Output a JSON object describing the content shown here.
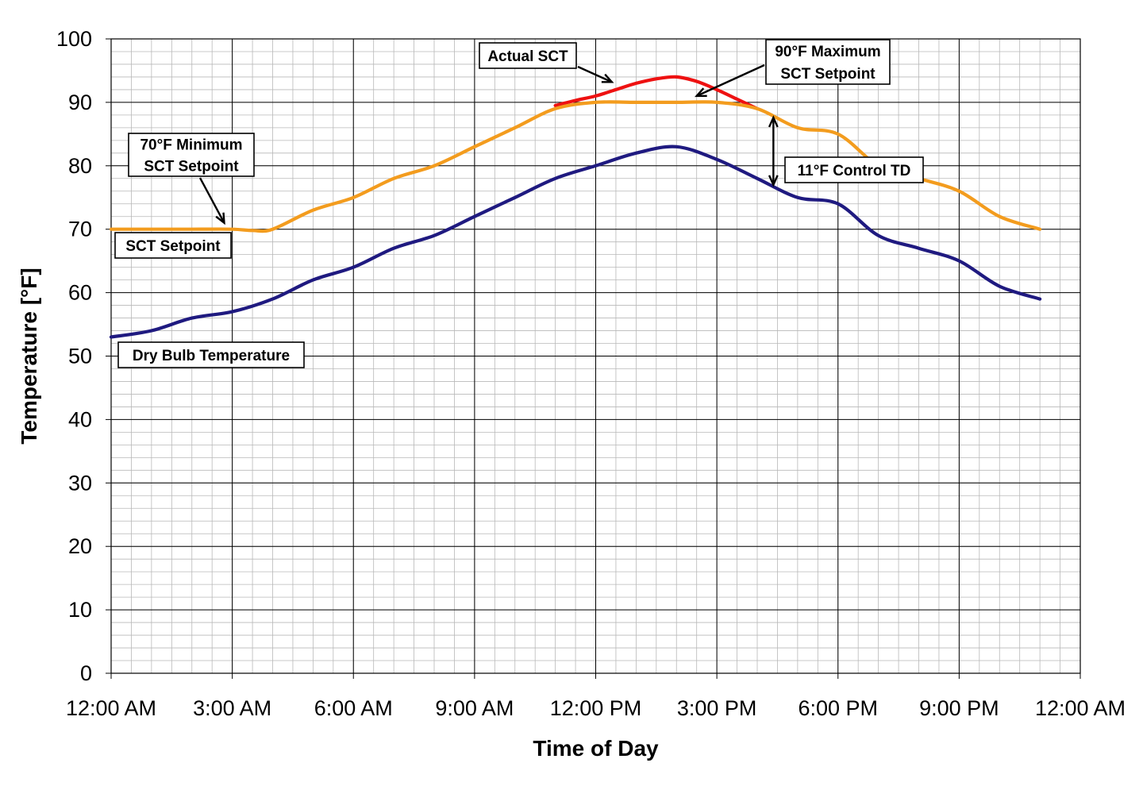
{
  "chart_data": {
    "type": "line",
    "xlabel": "Time of Day",
    "ylabel": "Temperature [°F]",
    "ylim": [
      0,
      100
    ],
    "yticks": [
      0,
      10,
      20,
      30,
      40,
      50,
      60,
      70,
      80,
      90,
      100
    ],
    "xlim": [
      0,
      24
    ],
    "xticks": [
      {
        "hour": 0,
        "label": "12:00 AM"
      },
      {
        "hour": 3,
        "label": "3:00 AM"
      },
      {
        "hour": 6,
        "label": "6:00 AM"
      },
      {
        "hour": 9,
        "label": "9:00 AM"
      },
      {
        "hour": 12,
        "label": "12:00 PM"
      },
      {
        "hour": 15,
        "label": "3:00 PM"
      },
      {
        "hour": 18,
        "label": "6:00 PM"
      },
      {
        "hour": 21,
        "label": "9:00 PM"
      },
      {
        "hour": 24,
        "label": "12:00 AM"
      }
    ],
    "grid": true,
    "series": [
      {
        "name": "Actual SCT",
        "color": "#ee1111",
        "x": [
          11,
          11.5,
          12,
          12.5,
          13,
          13.5,
          14,
          14.5,
          15,
          15.5,
          16
        ],
        "y": [
          89.5,
          90.3,
          91,
          92,
          93,
          93.7,
          94,
          93.3,
          92,
          90.5,
          89
        ]
      },
      {
        "name": "SCT Setpoint",
        "color": "#f39c1e",
        "x": [
          0,
          1,
          2,
          3,
          3.5,
          4,
          5,
          6,
          7,
          8,
          9,
          10,
          11,
          12,
          13,
          14,
          15,
          16,
          17,
          18,
          19,
          20,
          21,
          22,
          23
        ],
        "y": [
          70,
          70,
          70,
          70,
          69.8,
          70,
          73,
          75,
          78,
          80,
          83,
          86,
          89,
          90,
          90,
          90,
          90,
          89,
          86,
          85,
          80,
          78,
          76,
          72,
          70
        ]
      },
      {
        "name": "Dry Bulb Temperature",
        "color": "#1f1a80",
        "x": [
          0,
          1,
          2,
          3,
          4,
          5,
          6,
          7,
          8,
          9,
          10,
          11,
          12,
          13,
          14,
          15,
          16,
          17,
          18,
          19,
          20,
          21,
          22,
          23
        ],
        "y": [
          53,
          54,
          56,
          57,
          59,
          62,
          64,
          67,
          69,
          72,
          75,
          78,
          80,
          82,
          83,
          81,
          78,
          75,
          74,
          69,
          67,
          65,
          61,
          59
        ]
      }
    ],
    "annotations": [
      {
        "text_lines": [
          "Actual SCT"
        ],
        "arrow_to": {
          "x": 12.4,
          "y": 93.2
        }
      },
      {
        "text_lines": [
          "90°F Maximum",
          "SCT Setpoint"
        ],
        "arrow_to": {
          "x": 14.5,
          "y": 91
        }
      },
      {
        "text_lines": [
          "70°F Minimum",
          "SCT Setpoint"
        ],
        "arrow_to": {
          "x": 2.8,
          "y": 71
        }
      },
      {
        "text_lines": [
          "SCT Setpoint"
        ]
      },
      {
        "text_lines": [
          "Dry Bulb Temperature"
        ]
      },
      {
        "text_lines": [
          "11°F Control TD"
        ],
        "double_arrow": {
          "x": 16.4,
          "y1": 87.6,
          "y2": 77
        }
      }
    ]
  }
}
